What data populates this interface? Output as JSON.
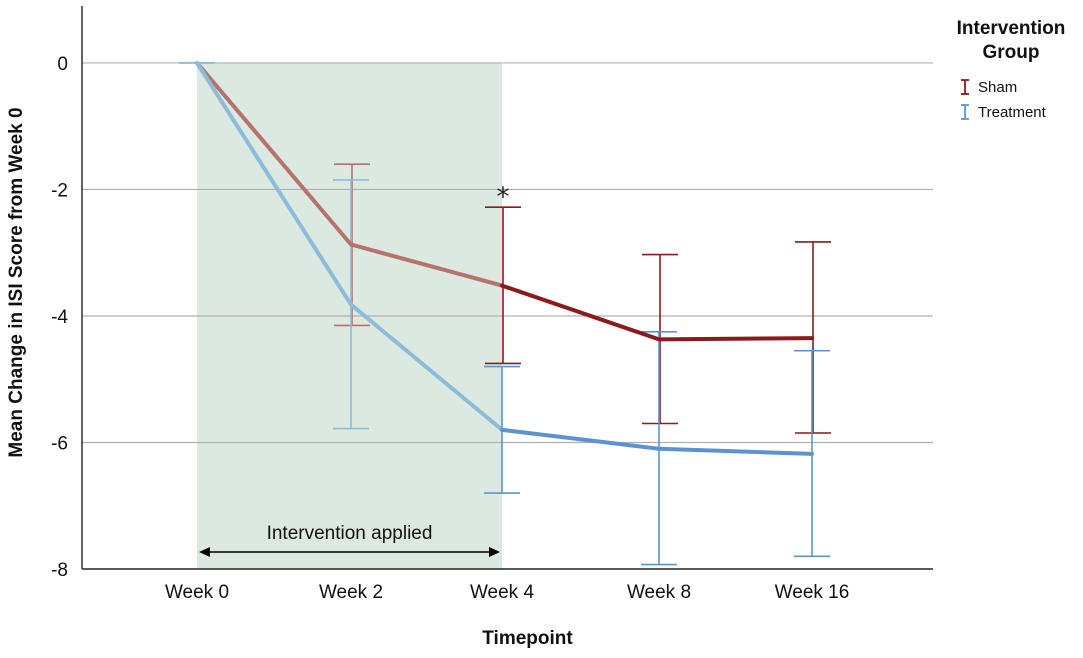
{
  "chart_data": {
    "type": "line",
    "title": "",
    "xlabel": "Timepoint",
    "ylabel": "Mean Change in ISI Score from Week 0",
    "categories": [
      "Week 0",
      "Week 2",
      "Week 4",
      "Week 8",
      "Week 16"
    ],
    "ylim": [
      -8,
      0.9
    ],
    "yticks": [
      0,
      -2,
      -4,
      -6,
      -8
    ],
    "grid": "horizontal",
    "legend": {
      "title_lines": [
        "Intervention",
        "Group"
      ],
      "placement": "top-right"
    },
    "series": [
      {
        "name": "Sham",
        "color": "#8b1a1a",
        "faded_color": "#b5736c",
        "values": [
          0,
          -2.87,
          -3.52,
          -4.37,
          -4.35
        ],
        "error_low": [
          0,
          -4.15,
          -4.75,
          -5.7,
          -5.85
        ],
        "error_high": [
          0,
          -1.6,
          -2.28,
          -3.03,
          -2.83
        ]
      },
      {
        "name": "Treatment",
        "color": "#5b93d1",
        "faded_color": "#8bbcdb",
        "values": [
          0,
          -3.82,
          -5.8,
          -6.1,
          -6.18
        ],
        "error_low": [
          0,
          -5.78,
          -6.8,
          -7.93,
          -7.8
        ],
        "error_high": [
          0,
          -1.85,
          -4.8,
          -4.25,
          -4.55
        ]
      }
    ],
    "shaded_region": {
      "from": "Week 0",
      "to": "Week 4",
      "color": "#dce9e0",
      "label": "Intervention applied"
    },
    "annotations": [
      {
        "text": "*",
        "category": "Week 4",
        "y": -2.03
      }
    ]
  }
}
